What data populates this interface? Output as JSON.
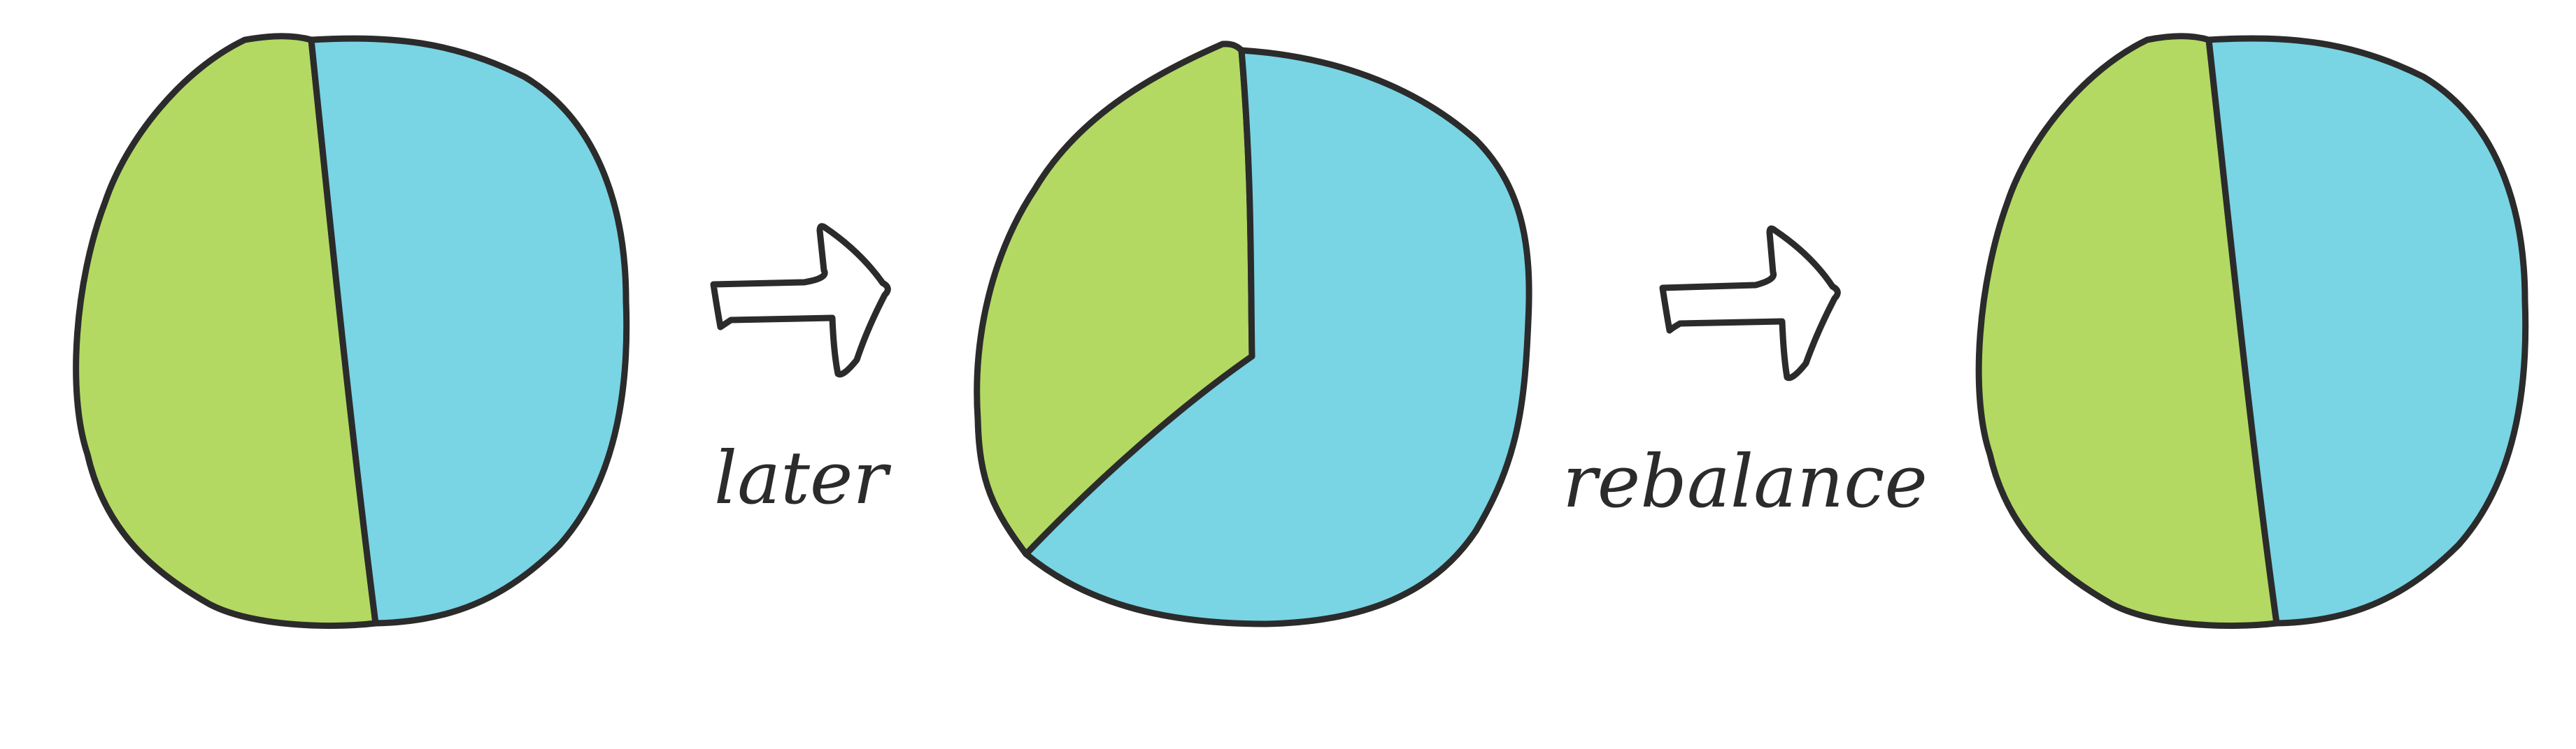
{
  "colors": {
    "green": "#b3d962",
    "blue": "#79d4e4",
    "outline": "#2b2b2b",
    "background": "#ffffff"
  },
  "steps": [
    {
      "name": "before",
      "green_fraction": 0.5,
      "blue_fraction": 0.5
    },
    {
      "name": "after-later",
      "green_fraction": 0.35,
      "blue_fraction": 0.65
    },
    {
      "name": "after-rebalance",
      "green_fraction": 0.5,
      "blue_fraction": 0.5
    }
  ],
  "arrows": [
    {
      "label": "later",
      "icon": "right-arrow-icon"
    },
    {
      "label": "rebalance",
      "icon": "right-arrow-icon"
    }
  ]
}
